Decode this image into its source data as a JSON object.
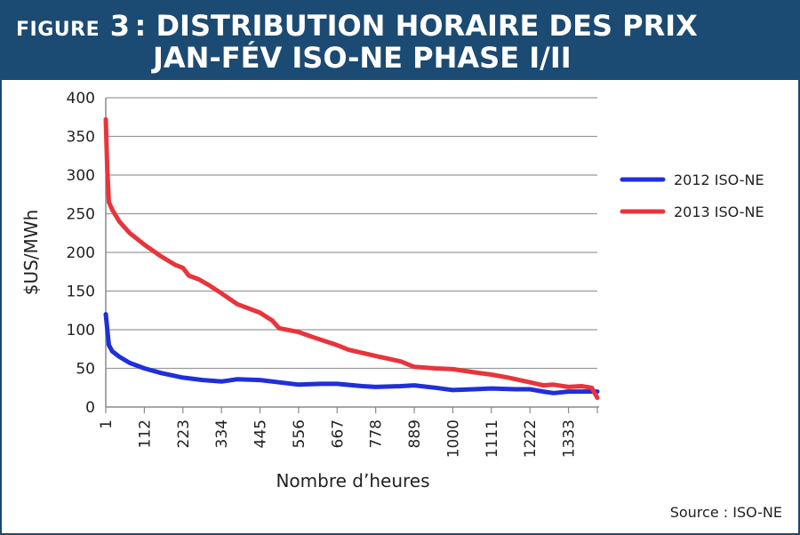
{
  "header": {
    "prefix": "FIGURE",
    "number": "3",
    "title_line1": ": DISTRIBUTION HORAIRE DES PRIX",
    "title_line2": "JAN-FÉV  ISO-NE  PHASE I/II",
    "bg_color": "#1b4a73"
  },
  "source": "Source : ISO-NE",
  "chart_data": {
    "type": "line",
    "ylabel": "$US/MWh",
    "xlabel": "Nombre d’heures",
    "ylim": [
      0,
      400
    ],
    "yticks": [
      0,
      50,
      100,
      150,
      200,
      250,
      300,
      350,
      400
    ],
    "xlim": [
      1,
      1416
    ],
    "xticks": [
      1,
      112,
      223,
      334,
      445,
      556,
      667,
      778,
      889,
      1000,
      1111,
      1222,
      1333
    ],
    "grid": true,
    "legend_position": "right",
    "series": [
      {
        "name": "2012 ISO-NE",
        "color": "#1f2fd9",
        "x": [
          1,
          10,
          20,
          40,
          70,
          112,
          160,
          223,
          280,
          334,
          380,
          445,
          500,
          556,
          620,
          667,
          740,
          778,
          850,
          889,
          950,
          1000,
          1060,
          1111,
          1180,
          1222,
          1260,
          1290,
          1333,
          1370,
          1416
        ],
        "y": [
          120,
          80,
          72,
          65,
          57,
          50,
          44,
          38,
          35,
          33,
          36,
          35,
          32,
          29,
          30,
          30,
          27,
          26,
          27,
          28,
          25,
          22,
          23,
          24,
          23,
          23,
          20,
          18,
          20,
          20,
          20
        ]
      },
      {
        "name": "2013 ISO-NE",
        "color": "#e8343b",
        "x": [
          1,
          5,
          10,
          20,
          40,
          70,
          112,
          160,
          200,
          223,
          240,
          270,
          300,
          334,
          380,
          445,
          480,
          500,
          556,
          600,
          667,
          700,
          778,
          850,
          889,
          950,
          1000,
          1060,
          1111,
          1160,
          1222,
          1260,
          1290,
          1333,
          1370,
          1400,
          1416
        ],
        "y": [
          372,
          310,
          265,
          255,
          240,
          225,
          210,
          195,
          184,
          180,
          170,
          165,
          157,
          147,
          133,
          122,
          112,
          102,
          97,
          90,
          80,
          74,
          66,
          59,
          52,
          50,
          49,
          45,
          42,
          38,
          32,
          28,
          29,
          26,
          27,
          25,
          12
        ]
      }
    ]
  }
}
